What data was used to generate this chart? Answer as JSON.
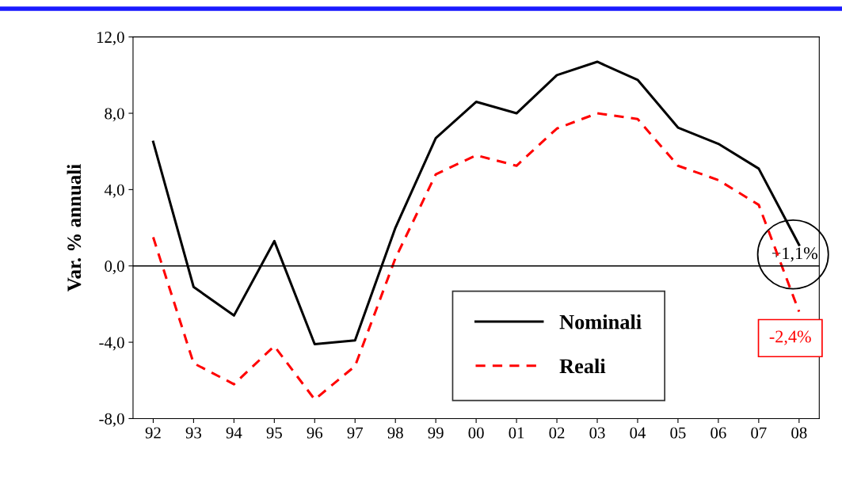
{
  "chart_data": {
    "type": "line",
    "ylabel": "Var. % annuali",
    "categories": [
      "92",
      "93",
      "94",
      "95",
      "96",
      "97",
      "98",
      "99",
      "00",
      "01",
      "02",
      "03",
      "04",
      "05",
      "06",
      "07",
      "08"
    ],
    "series": [
      {
        "name": "Nominali",
        "color": "#000000",
        "line_style": "solid",
        "values": [
          6.5,
          -1.1,
          -2.6,
          1.3,
          -4.1,
          -3.9,
          2.0,
          6.7,
          8.6,
          8.0,
          10.0,
          10.7,
          9.75,
          7.25,
          6.4,
          5.1,
          1.1
        ]
      },
      {
        "name": "Reali",
        "color": "#ff0000",
        "line_style": "dashed",
        "values": [
          1.5,
          -5.1,
          -6.2,
          -4.2,
          -7.0,
          -5.25,
          0.4,
          4.8,
          5.8,
          5.25,
          7.2,
          8.0,
          7.7,
          5.25,
          4.5,
          3.2,
          -2.4
        ]
      }
    ],
    "ylim": [
      -8,
      12
    ],
    "yticks": [
      {
        "value": -8,
        "label": "-8,0"
      },
      {
        "value": -4,
        "label": "-4,0"
      },
      {
        "value": 0,
        "label": "0,0"
      },
      {
        "value": 4,
        "label": "4,0"
      },
      {
        "value": 8,
        "label": "8,0"
      },
      {
        "value": 12,
        "label": "12,0"
      }
    ],
    "ref_lines": [
      {
        "axis": "y",
        "value": 0,
        "color": "#000000"
      }
    ],
    "annotations": [
      {
        "text": "+1,1%",
        "x": "08",
        "y": 1.1
      },
      {
        "text": "-2,4%",
        "x": "08",
        "y": -2.4
      }
    ],
    "grid": false,
    "legend": "bottom right",
    "marker": "none"
  }
}
